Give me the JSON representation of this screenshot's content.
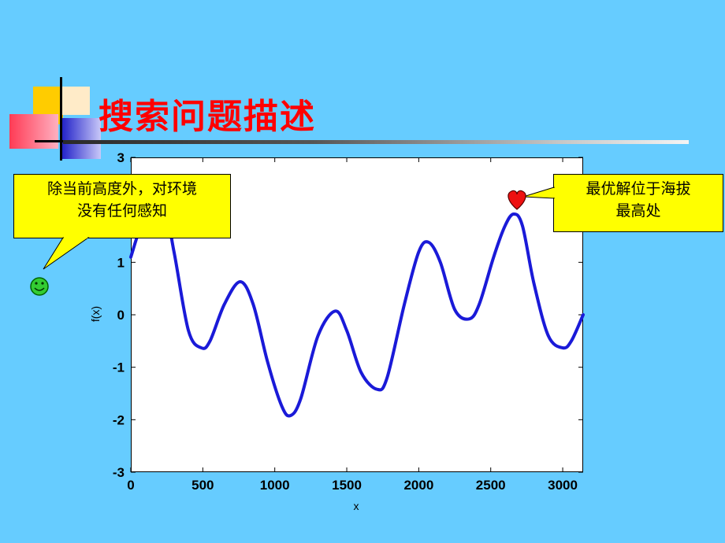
{
  "slide": {
    "title": "搜索问题描述",
    "background": "#66CCFF",
    "title_color": "#FF0000"
  },
  "callouts": {
    "left": {
      "text": "除当前高度外，对环境\n没有任何感知",
      "marker_icon": "smiley-icon"
    },
    "right": {
      "text": "最优解位于海拔\n最高处",
      "marker_icon": "heart-icon"
    }
  },
  "chart_data": {
    "type": "line",
    "xlabel": "x",
    "ylabel": "f(x)",
    "xlim": [
      0,
      3142
    ],
    "ylim": [
      -3,
      3
    ],
    "x_ticks": [
      0,
      500,
      1000,
      1500,
      2000,
      2500,
      3000
    ],
    "y_ticks": [
      -3,
      -2,
      -1,
      0,
      1,
      2,
      3
    ],
    "line_color": "#1A1AD8",
    "grid": false,
    "x": [
      0,
      100,
      220,
      300,
      400,
      490,
      550,
      650,
      760,
      850,
      950,
      1050,
      1110,
      1180,
      1300,
      1420,
      1500,
      1600,
      1710,
      1780,
      1900,
      2000,
      2070,
      2150,
      2250,
      2350,
      2420,
      2520,
      2600,
      2660,
      2720,
      2800,
      2900,
      3000,
      3060,
      3142
    ],
    "y": [
      1.1,
      1.9,
      2.2,
      1.2,
      -0.3,
      -0.63,
      -0.5,
      0.2,
      0.63,
      0.2,
      -0.9,
      -1.75,
      -1.92,
      -1.6,
      -0.4,
      0.07,
      -0.3,
      -1.1,
      -1.42,
      -1.2,
      0.2,
      1.2,
      1.38,
      1.0,
      0.1,
      -0.08,
      0.2,
      1.1,
      1.7,
      1.92,
      1.7,
      0.6,
      -0.4,
      -0.63,
      -0.5,
      0.0
    ]
  }
}
